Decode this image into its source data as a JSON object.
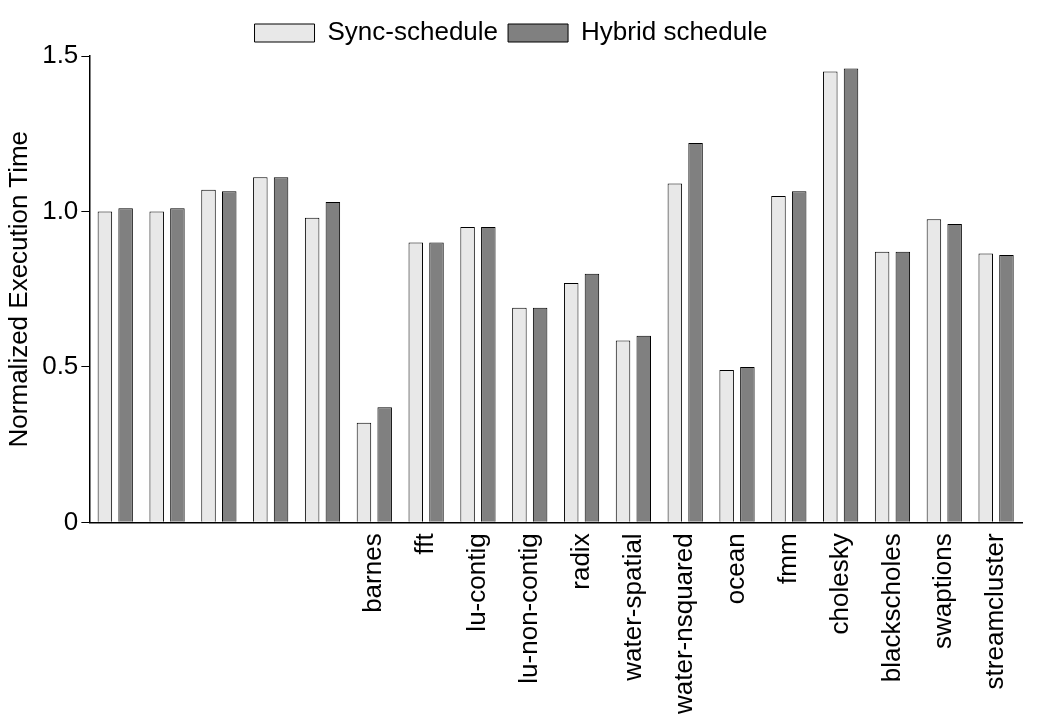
{
  "chart_data": {
    "type": "bar",
    "ylabel": "Normalized Execution Time",
    "categories": [
      null,
      null,
      null,
      null,
      null,
      "barnes",
      "fft",
      "lu-contig",
      "lu-non-contig",
      "radix",
      "water-spatial",
      "water-nsquared",
      "ocean",
      "fmm",
      "cholesky",
      "blackscholes",
      "swaptions",
      "streamcluster"
    ],
    "series": [
      {
        "name": "Sync-schedule",
        "color": "#e8e8e8",
        "values": [
          1.0,
          1.0,
          1.07,
          1.11,
          0.98,
          0.32,
          0.9,
          0.95,
          0.69,
          0.77,
          0.585,
          1.09,
          0.49,
          1.05,
          1.45,
          0.87,
          0.975,
          0.865
        ]
      },
      {
        "name": "Hybrid schedule",
        "color": "#808080",
        "values": [
          1.01,
          1.01,
          1.065,
          1.11,
          1.03,
          0.37,
          0.9,
          0.95,
          0.69,
          0.8,
          0.6,
          1.22,
          0.5,
          1.065,
          1.46,
          0.87,
          0.96,
          0.86
        ]
      }
    ],
    "ylim": [
      0,
      1.5
    ],
    "yticks": [
      0,
      {
        "value": 0.5,
        "label": "0.5"
      },
      {
        "value": 1,
        "label": "1.0"
      },
      {
        "value": 1.5,
        "label": "1.5"
      }
    ],
    "grid": false,
    "legend": "top"
  }
}
